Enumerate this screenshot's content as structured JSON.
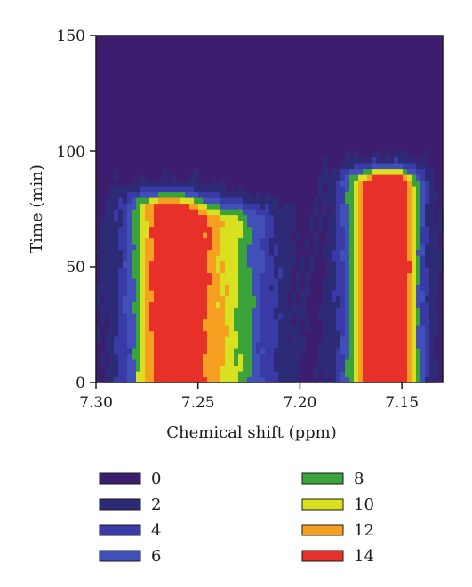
{
  "chart_data": {
    "type": "heatmap",
    "xlabel": "Chemical shift (ppm)",
    "ylabel": "Time (min)",
    "xlim": [
      7.3,
      7.13
    ],
    "ylim": [
      0,
      150
    ],
    "x_ticks": [
      "7.30",
      "7.25",
      "7.20",
      "7.15"
    ],
    "x_tick_values": [
      7.3,
      7.25,
      7.2,
      7.15
    ],
    "y_ticks": [
      "0",
      "50",
      "100",
      "150"
    ],
    "y_tick_values": [
      0,
      50,
      100,
      150
    ],
    "x_reversed": true,
    "grid": false,
    "legend": {
      "placement": "bottom",
      "levels": [
        {
          "label": "0",
          "value": 0,
          "color": "#3d1d6e"
        },
        {
          "label": "2",
          "value": 2,
          "color": "#2d2a78"
        },
        {
          "label": "4",
          "value": 4,
          "color": "#3a3aa6"
        },
        {
          "label": "6",
          "value": 6,
          "color": "#4050b8"
        },
        {
          "label": "8",
          "value": 8,
          "color": "#3aa33a"
        },
        {
          "label": "10",
          "value": 10,
          "color": "#d8e020"
        },
        {
          "label": "12",
          "value": 12,
          "color": "#f5a020"
        },
        {
          "label": "14",
          "value": 14,
          "color": "#e8302a"
        }
      ]
    },
    "peaks": [
      {
        "center_ppm": 7.265,
        "width_ppm": 0.018,
        "intensity": 14,
        "t_end_min": 75
      },
      {
        "center_ppm": 7.237,
        "width_ppm": 0.022,
        "intensity": 9,
        "t_end_min": 70
      },
      {
        "center_ppm": 7.163,
        "width_ppm": 0.014,
        "intensity": 15,
        "t_end_min": 85
      },
      {
        "center_ppm": 7.15,
        "width_ppm": 0.01,
        "intensity": 9,
        "t_end_min": 85
      }
    ]
  }
}
